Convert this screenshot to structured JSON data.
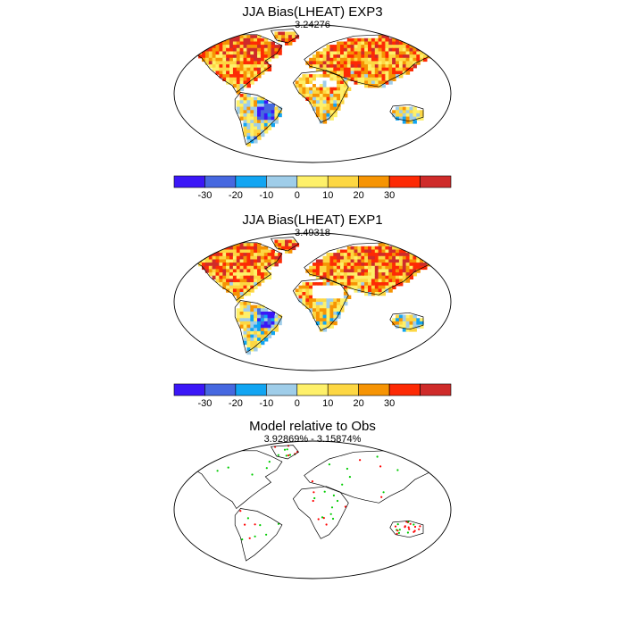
{
  "panels": [
    {
      "title": "JJA Bias(LHEAT) EXP3",
      "subtitle": "3.24276",
      "has_colorbar": true,
      "style": "bias_exp3"
    },
    {
      "title": "JJA Bias(LHEAT) EXP1",
      "subtitle": "3.49318",
      "has_colorbar": true,
      "style": "bias_exp1"
    },
    {
      "title": "Model relative to Obs",
      "subtitle": "3.92869% - 3.15874%",
      "has_colorbar": false,
      "style": "points"
    }
  ],
  "colorbar": {
    "colors": [
      "#3b17f7",
      "#4668e0",
      "#12a5f2",
      "#9fcde9",
      "#fef06a",
      "#fdd743",
      "#f69404",
      "#fd2a05",
      "#cf2b2a"
    ],
    "labels": [
      "-30",
      "-20",
      "-10",
      "0",
      "10",
      "20",
      "30"
    ]
  },
  "points_legend": {
    "colors": [
      "#ff0000",
      "#00cc00"
    ]
  }
}
